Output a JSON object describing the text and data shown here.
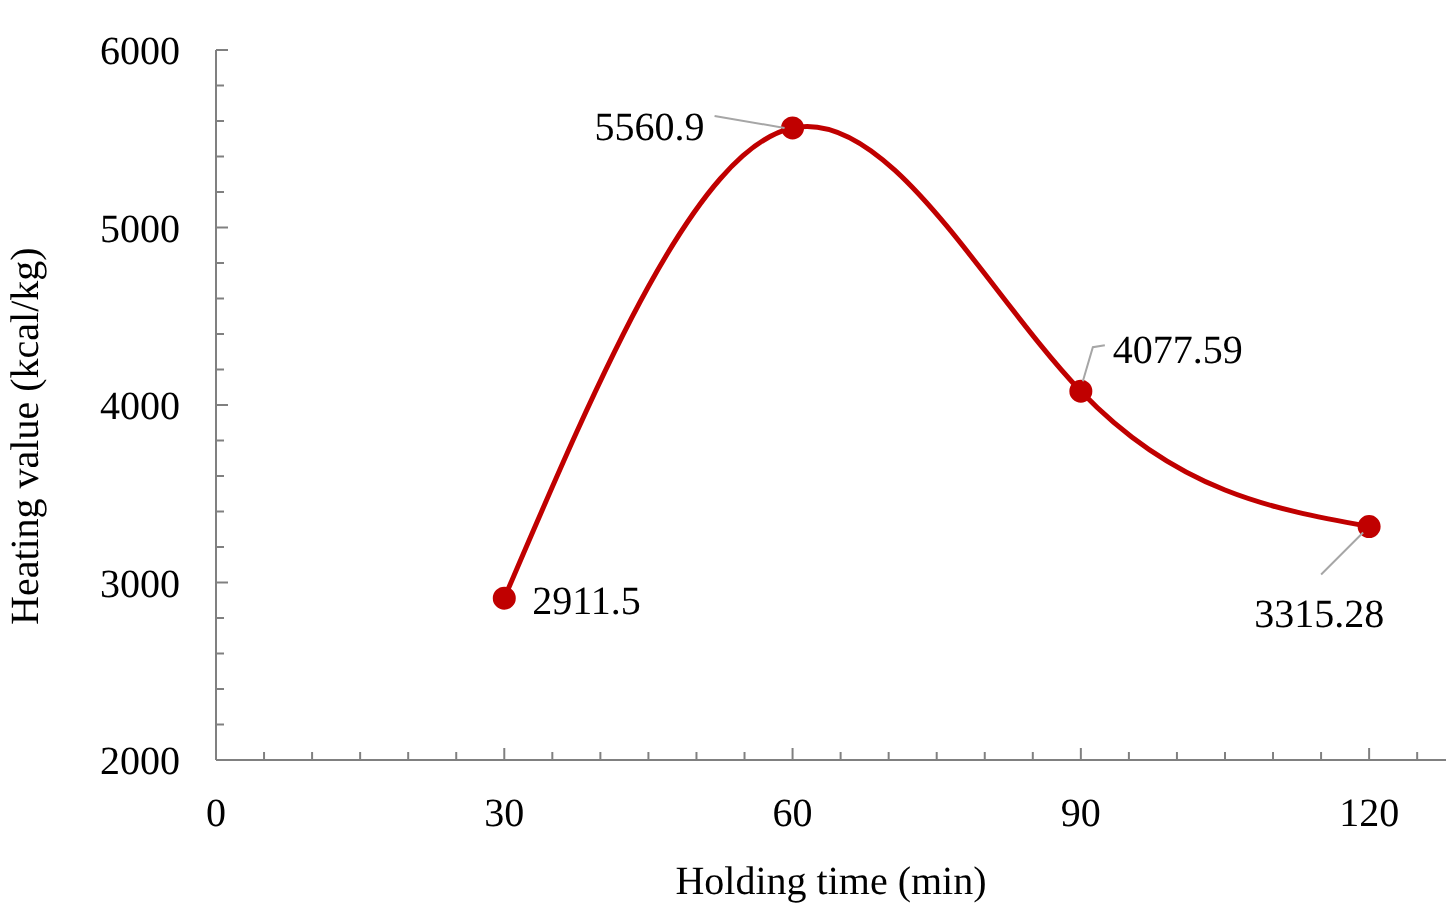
{
  "chart_data": {
    "type": "line",
    "xlabel": "Holding time (min)",
    "ylabel": "Heating value (kcal/kg)",
    "x": [
      30,
      60,
      90,
      120
    ],
    "series": [
      {
        "color": "#c00000",
        "values": [
          2911.5,
          5560.9,
          4077.59,
          3315.28
        ]
      }
    ],
    "xlim": [
      0,
      128
    ],
    "xticks": [
      0,
      {
        "value": 5,
        "label": null
      },
      {
        "value": 10,
        "label": null
      },
      {
        "value": 15,
        "label": null
      },
      {
        "value": 20,
        "label": null
      },
      {
        "value": 25,
        "label": null
      },
      30,
      {
        "value": 35,
        "label": null
      },
      {
        "value": 40,
        "label": null
      },
      {
        "value": 45,
        "label": null
      },
      {
        "value": 50,
        "label": null
      },
      {
        "value": 55,
        "label": null
      },
      60,
      {
        "value": 65,
        "label": null
      },
      {
        "value": 70,
        "label": null
      },
      {
        "value": 75,
        "label": null
      },
      {
        "value": 80,
        "label": null
      },
      {
        "value": 85,
        "label": null
      },
      90,
      {
        "value": 95,
        "label": null
      },
      {
        "value": 100,
        "label": null
      },
      {
        "value": 105,
        "label": null
      },
      {
        "value": 110,
        "label": null
      },
      {
        "value": 115,
        "label": null
      },
      120,
      {
        "value": 125,
        "label": null
      }
    ],
    "ylim": [
      2000,
      6000
    ],
    "yticks": [
      2000,
      {
        "value": 2200,
        "label": null
      },
      {
        "value": 2400,
        "label": null
      },
      {
        "value": 2600,
        "label": null
      },
      {
        "value": 2800,
        "label": null
      },
      3000,
      {
        "value": 3200,
        "label": null
      },
      {
        "value": 3400,
        "label": null
      },
      {
        "value": 3600,
        "label": null
      },
      {
        "value": 3800,
        "label": null
      },
      4000,
      {
        "value": 4200,
        "label": null
      },
      {
        "value": 4400,
        "label": null
      },
      {
        "value": 4600,
        "label": null
      },
      {
        "value": 4800,
        "label": null
      },
      5000,
      {
        "value": 5200,
        "label": null
      },
      {
        "value": 5400,
        "label": null
      },
      {
        "value": 5600,
        "label": null
      },
      {
        "value": 5800,
        "label": null
      },
      6000
    ],
    "grid": false,
    "legend": false,
    "marker": "circle",
    "line_style": "solid",
    "data_labels": true
  }
}
